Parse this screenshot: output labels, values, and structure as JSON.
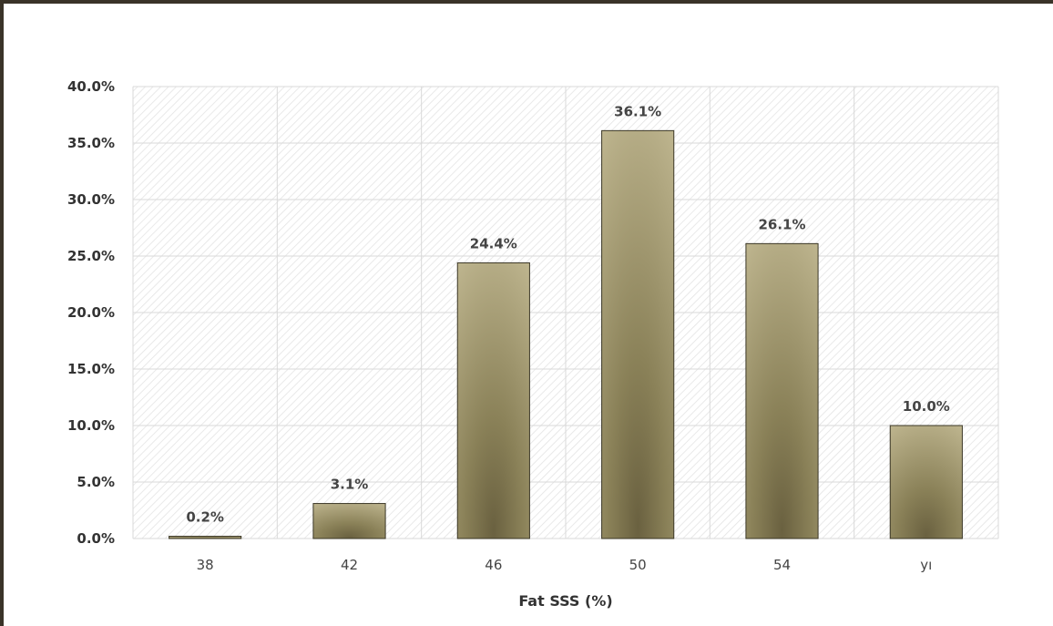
{
  "chart_data": {
    "type": "bar",
    "categories": [
      "38",
      "42",
      "46",
      "50",
      "54",
      "yı"
    ],
    "values": [
      0.2,
      3.1,
      24.4,
      36.1,
      26.1,
      10.0
    ],
    "data_labels": [
      "0.2%",
      "3.1%",
      "24.4%",
      "36.1%",
      "26.1%",
      "10.0%"
    ],
    "title": "",
    "xlabel": "Fat SSS (%)",
    "ylabel": "",
    "ylim": [
      0,
      40
    ],
    "yticks": [
      0,
      5,
      10,
      15,
      20,
      25,
      30,
      35,
      40
    ],
    "ytick_labels": [
      "0.0%",
      "5.0%",
      "10.0%",
      "15.0%",
      "20.0%",
      "25.0%",
      "30.0%",
      "35.0%",
      "40.0%"
    ],
    "grid": true,
    "legend": "none",
    "colors": {
      "bar_light": "#c3ba94",
      "bar_dark": "#6a6140",
      "bar_border": "#3b3726",
      "grid": "#d9d9d9",
      "frame": "#3a3328"
    }
  }
}
